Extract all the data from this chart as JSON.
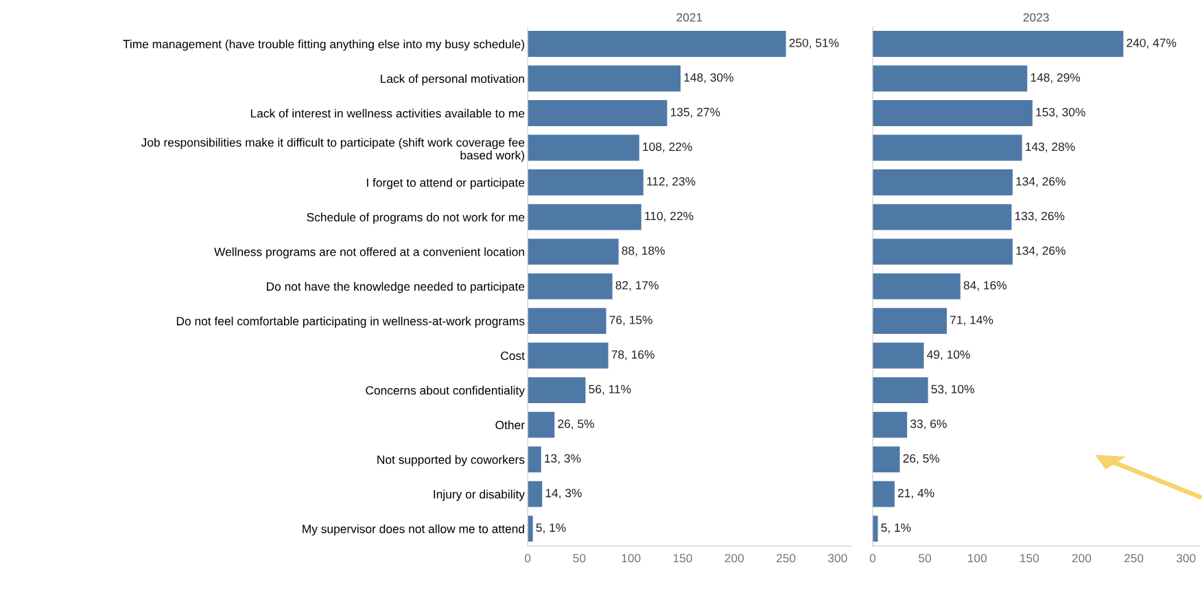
{
  "chart_data": [
    {
      "type": "bar",
      "orientation": "horizontal",
      "title": "2021",
      "categories": [
        "Time management (have trouble fitting anything else into my busy schedule)",
        "Lack of personal motivation",
        "Lack of interest in wellness activities available to me",
        "Job responsibilities make it difficult to participate (shift work coverage fee\nbased work)",
        "I forget to attend or participate",
        "Schedule of programs do not work for me",
        "Wellness programs are not offered at a convenient location",
        "Do not have the knowledge needed to participate",
        "Do not feel comfortable participating in wellness-at-work programs",
        "Cost",
        "Concerns about confidentiality",
        "Other",
        "Not supported by coworkers",
        "Injury or disability",
        "My supervisor does not allow me to attend"
      ],
      "values": [
        250,
        148,
        135,
        108,
        112,
        110,
        88,
        82,
        76,
        78,
        56,
        26,
        13,
        14,
        5
      ],
      "value_labels": [
        "250, 51%",
        "148, 30%",
        "135, 27%",
        "108, 22%",
        "112, 23%",
        "110, 22%",
        "88, 18%",
        "82, 17%",
        "76, 15%",
        "78, 16%",
        "56, 11%",
        "26, 5%",
        "13, 3%",
        "14, 3%",
        "5, 1%"
      ],
      "color": "#4e79a7",
      "xlim": [
        0,
        313
      ],
      "xticks": [
        0,
        50,
        100,
        150,
        200,
        250,
        300
      ],
      "grid": false,
      "legend": false
    },
    {
      "type": "bar",
      "orientation": "horizontal",
      "title": "2023",
      "tick_labels": "x",
      "values": [
        240,
        148,
        153,
        143,
        134,
        133,
        134,
        84,
        71,
        49,
        53,
        33,
        26,
        21,
        5
      ],
      "value_labels": [
        "240, 47%",
        "148, 29%",
        "153, 30%",
        "143, 28%",
        "134, 26%",
        "133, 26%",
        "134, 26%",
        "84, 16%",
        "71, 14%",
        "49, 10%",
        "53, 10%",
        "33, 6%",
        "26, 5%",
        "21, 4%",
        "5, 1%"
      ],
      "color": "#4e79a7",
      "xlim": [
        0,
        313
      ],
      "xticks": [
        0,
        50,
        100,
        150,
        200,
        250,
        300
      ],
      "grid": false,
      "legend": false
    }
  ]
}
